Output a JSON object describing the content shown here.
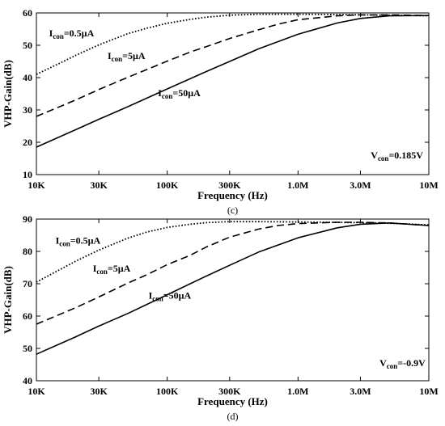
{
  "chart_data": [
    {
      "type": "line",
      "caption": "(c)",
      "xlabel": "Frequency (Hz)",
      "ylabel": "VHP-Gain(dB)",
      "xscale": "log",
      "xlim": [
        10000,
        10000000
      ],
      "ylim": [
        10,
        60
      ],
      "x_ticks": [
        {
          "value": 10000,
          "label": "10K"
        },
        {
          "value": 30000,
          "label": "30K"
        },
        {
          "value": 100000,
          "label": "100K"
        },
        {
          "value": 300000,
          "label": "300K"
        },
        {
          "value": 1000000,
          "label": "1.0M"
        },
        {
          "value": 3000000,
          "label": "3.0M"
        },
        {
          "value": 10000000,
          "label": "10M"
        }
      ],
      "y_ticks": [
        {
          "value": 10,
          "label": "10"
        },
        {
          "value": 20,
          "label": "20"
        },
        {
          "value": 30,
          "label": "30"
        },
        {
          "value": 40,
          "label": "40"
        },
        {
          "value": 50,
          "label": "50"
        },
        {
          "value": 60,
          "label": "60"
        }
      ],
      "series": [
        {
          "label": {
            "main": "I",
            "sub": "con",
            "rest": "=0.5µA",
            "at": [
              12500,
              52.8
            ]
          },
          "style": "dotted",
          "points": [
            [
              10000,
              41.0
            ],
            [
              15000,
              44.4
            ],
            [
              20000,
              46.9
            ],
            [
              30000,
              50.1
            ],
            [
              50000,
              53.6
            ],
            [
              70000,
              55.3
            ],
            [
              100000,
              56.8
            ],
            [
              150000,
              58.0
            ],
            [
              200000,
              58.7
            ],
            [
              300000,
              59.3
            ],
            [
              500000,
              59.6
            ],
            [
              1000000,
              59.6
            ],
            [
              2000000,
              59.5
            ],
            [
              5000000,
              59.3
            ],
            [
              10000000,
              59.1
            ]
          ]
        },
        {
          "label": {
            "main": "I",
            "sub": "con",
            "rest": "=5µA",
            "at": [
              35000,
              45.8
            ]
          },
          "style": "dashed",
          "points": [
            [
              10000,
              28.0
            ],
            [
              20000,
              33.1
            ],
            [
              30000,
              36.3
            ],
            [
              50000,
              40.1
            ],
            [
              70000,
              42.5
            ],
            [
              100000,
              45.1
            ],
            [
              150000,
              47.9
            ],
            [
              200000,
              49.6
            ],
            [
              300000,
              52.1
            ],
            [
              500000,
              54.8
            ],
            [
              700000,
              56.5
            ],
            [
              1000000,
              57.9
            ],
            [
              2000000,
              59.1
            ],
            [
              3000000,
              59.4
            ],
            [
              5000000,
              59.4
            ],
            [
              10000000,
              59.2
            ]
          ]
        },
        {
          "label": {
            "main": "I",
            "sub": "con",
            "rest": "=50µA",
            "at": [
              85000,
              34.2
            ]
          },
          "style": "solid",
          "points": [
            [
              10000,
              18.5
            ],
            [
              20000,
              23.9
            ],
            [
              30000,
              27.1
            ],
            [
              50000,
              31.0
            ],
            [
              100000,
              36.5
            ],
            [
              200000,
              41.9
            ],
            [
              300000,
              45.0
            ],
            [
              500000,
              48.9
            ],
            [
              1000000,
              53.4
            ],
            [
              2000000,
              56.9
            ],
            [
              3000000,
              58.3
            ],
            [
              5000000,
              59.1
            ],
            [
              10000000,
              59.2
            ]
          ]
        }
      ],
      "annotation": {
        "main": "V",
        "sub": "con",
        "rest": "=0.185V",
        "at": [
          3600000,
          15.0
        ]
      }
    },
    {
      "type": "line",
      "caption": "(d)",
      "xlabel": "Frequency (Hz)",
      "ylabel": "VHP-Gain(dB)",
      "xscale": "log",
      "xlim": [
        10000,
        10000000
      ],
      "ylim": [
        40,
        90
      ],
      "x_ticks": [
        {
          "value": 10000,
          "label": "10K"
        },
        {
          "value": 30000,
          "label": "30K"
        },
        {
          "value": 100000,
          "label": "100K"
        },
        {
          "value": 300000,
          "label": "300K"
        },
        {
          "value": 1000000,
          "label": "1.0M"
        },
        {
          "value": 3000000,
          "label": "3.0M"
        },
        {
          "value": 10000000,
          "label": "10M"
        }
      ],
      "y_ticks": [
        {
          "value": 40,
          "label": "40"
        },
        {
          "value": 50,
          "label": "50"
        },
        {
          "value": 60,
          "label": "60"
        },
        {
          "value": 70,
          "label": "70"
        },
        {
          "value": 80,
          "label": "80"
        },
        {
          "value": 90,
          "label": "90"
        }
      ],
      "series": [
        {
          "label": {
            "main": "I",
            "sub": "con",
            "rest": "=0.5µA",
            "at": [
              14000,
              82.4
            ]
          },
          "style": "dotted",
          "points": [
            [
              10000,
              70.5
            ],
            [
              15000,
              74.3
            ],
            [
              20000,
              77.0
            ],
            [
              30000,
              80.4
            ],
            [
              50000,
              84.1
            ],
            [
              70000,
              86.0
            ],
            [
              100000,
              87.4
            ],
            [
              150000,
              88.4
            ],
            [
              200000,
              88.9
            ],
            [
              300000,
              89.2
            ],
            [
              500000,
              89.2
            ],
            [
              1000000,
              89.1
            ],
            [
              3000000,
              88.9
            ],
            [
              5000000,
              88.7
            ],
            [
              10000000,
              88.2
            ]
          ]
        },
        {
          "label": {
            "main": "I",
            "sub": "con",
            "rest": "=5µA",
            "at": [
              27000,
              73.8
            ]
          },
          "style": "dashed",
          "points": [
            [
              10000,
              57.5
            ],
            [
              20000,
              62.6
            ],
            [
              30000,
              65.9
            ],
            [
              50000,
              70.2
            ],
            [
              70000,
              72.8
            ],
            [
              100000,
              75.9
            ],
            [
              150000,
              78.8
            ],
            [
              200000,
              81.4
            ],
            [
              300000,
              84.4
            ],
            [
              500000,
              86.9
            ],
            [
              700000,
              88.0
            ],
            [
              1000000,
              88.6
            ],
            [
              2000000,
              89.0
            ],
            [
              3000000,
              89.0
            ],
            [
              5000000,
              88.8
            ],
            [
              10000000,
              88.0
            ]
          ]
        },
        {
          "label": {
            "main": "I",
            "sub": "con",
            "rest": "=50µA",
            "at": [
              72000,
              65.4
            ]
          },
          "style": "solid",
          "points": [
            [
              10000,
              48.2
            ],
            [
              20000,
              53.6
            ],
            [
              30000,
              56.9
            ],
            [
              50000,
              60.8
            ],
            [
              100000,
              66.6
            ],
            [
              200000,
              72.4
            ],
            [
              300000,
              75.7
            ],
            [
              500000,
              79.8
            ],
            [
              1000000,
              84.2
            ],
            [
              2000000,
              87.3
            ],
            [
              3000000,
              88.4
            ],
            [
              5000000,
              88.8
            ],
            [
              10000000,
              88.0
            ]
          ]
        }
      ],
      "annotation": {
        "main": "V",
        "sub": "con",
        "rest": "=-0.9V",
        "at": [
          4200000,
          44.5
        ]
      }
    }
  ]
}
